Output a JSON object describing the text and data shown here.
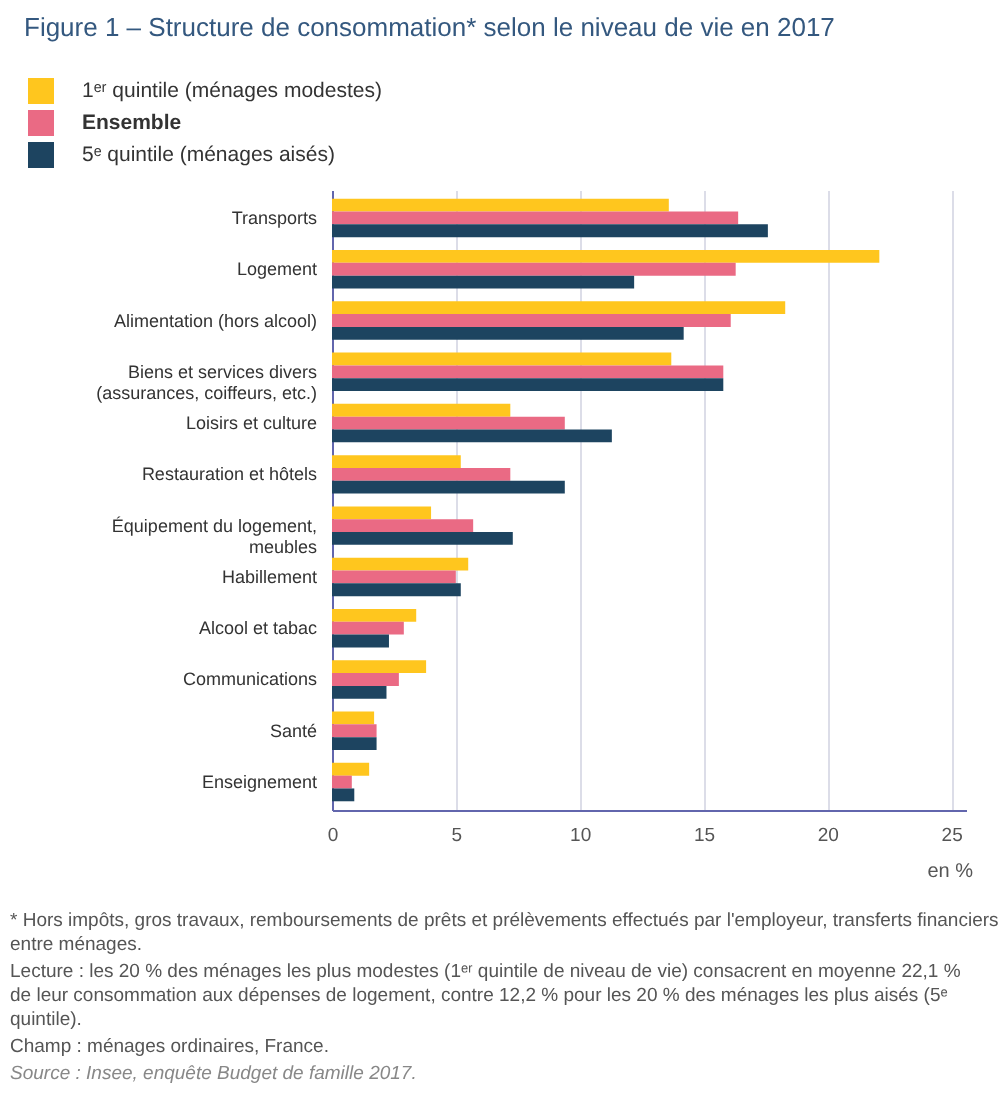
{
  "chart_data": {
    "type": "bar",
    "orientation": "horizontal",
    "title": "Figure 1 – Structure de consommation* selon le niveau de vie en 2017",
    "xlabel": "en %",
    "categories": [
      "Transports",
      "Logement",
      "Alimentation (hors alcool)",
      "Biens et services divers\n(assurances, coiffeurs, etc.)",
      "Loisirs et culture",
      "Restauration et hôtels",
      "Équipement du logement,\nmeubles",
      "Habillement",
      "Alcool et tabac",
      "Communications",
      "Santé",
      "Enseignement"
    ],
    "series": [
      {
        "name": "1ᵉʳ quintile (ménages modestes)",
        "color": "#ffc61e",
        "values": [
          13.6,
          22.1,
          18.3,
          13.7,
          7.2,
          5.2,
          4.0,
          5.5,
          3.4,
          3.8,
          1.7,
          1.5
        ]
      },
      {
        "name": "Ensemble",
        "color": "#ea6a84",
        "values": [
          16.4,
          16.3,
          16.1,
          15.8,
          9.4,
          7.2,
          5.7,
          5.0,
          2.9,
          2.7,
          1.8,
          0.8
        ]
      },
      {
        "name": "5ᵉ quintile (ménages aisés)",
        "color": "#1d4460",
        "values": [
          17.6,
          12.2,
          14.2,
          15.8,
          11.3,
          9.4,
          7.3,
          5.2,
          2.3,
          2.2,
          1.8,
          0.9
        ]
      }
    ],
    "xlim": [
      0,
      25.6
    ],
    "xticks": [
      0,
      5,
      10,
      15,
      20,
      25
    ],
    "grid": "x",
    "legend": "top left",
    "annotations": [
      "* Hors impôts, gros travaux, remboursements de prêts et prélèvements effectués par l'employeur, transferts financiers entre ménages.",
      "Lecture : les 20 % des ménages les plus modestes (1ᵉʳ quintile de niveau de vie) consacrent en moyenne 22,1 % de leur consommation aux dépenses de logement, contre 12,2 % pour les 20 % des ménages les plus aisés (5ᵉ quintile).",
      "Champ : ménages ordinaires, France.",
      "Source : Insee, enquête Budget de famille 2017."
    ]
  }
}
